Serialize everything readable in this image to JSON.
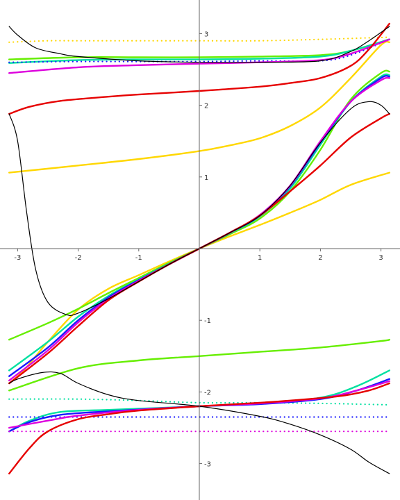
{
  "chart_data": {
    "type": "line",
    "title": "",
    "xlabel": "",
    "ylabel": "",
    "xlim": [
      -3.2,
      3.2
    ],
    "ylim": [
      -3.45,
      3.45
    ],
    "grid": false,
    "legend": "none",
    "x_ticks": [
      {
        "value": -3,
        "label": "-3"
      },
      {
        "value": -2,
        "label": "-2"
      },
      {
        "value": -1,
        "label": "-1"
      },
      {
        "value": 1,
        "label": "1"
      },
      {
        "value": 2,
        "label": "2"
      },
      {
        "value": 3,
        "label": "3"
      }
    ],
    "y_ticks": [
      {
        "value": -3,
        "label": "-3"
      },
      {
        "value": -2,
        "label": "-2"
      },
      {
        "value": -1,
        "label": "-1"
      },
      {
        "value": 1,
        "label": "1"
      },
      {
        "value": 2,
        "label": "2"
      },
      {
        "value": 3,
        "label": "3"
      }
    ],
    "series": [
      {
        "color": "#ffd700",
        "style": "solid",
        "points": [
          [
            -3.14,
            -1.88
          ],
          [
            -2.9,
            -1.7
          ],
          [
            -2.5,
            -1.3
          ],
          [
            -2,
            -0.85
          ],
          [
            -1.5,
            -0.56
          ],
          [
            -1,
            -0.37
          ],
          [
            -0.5,
            -0.18
          ],
          [
            0,
            0
          ],
          [
            0.5,
            0.17
          ],
          [
            1,
            0.33
          ],
          [
            1.5,
            0.5
          ],
          [
            2,
            0.68
          ],
          [
            2.5,
            0.89
          ],
          [
            3.14,
            1.06
          ]
        ]
      },
      {
        "color": "#ffd700",
        "style": "solid",
        "points": [
          [
            -3.14,
            1.06
          ],
          [
            -2,
            1.16
          ],
          [
            -1,
            1.25
          ],
          [
            0,
            1.36
          ],
          [
            0.5,
            1.44
          ],
          [
            1,
            1.54
          ],
          [
            1.5,
            1.71
          ],
          [
            2,
            1.97
          ],
          [
            2.5,
            2.38
          ],
          [
            3.0,
            2.84
          ],
          [
            3.14,
            2.88
          ]
        ]
      },
      {
        "color": "#ffd700",
        "style": "dotted",
        "points": [
          [
            -3.14,
            2.88
          ],
          [
            -2.5,
            2.9
          ],
          [
            -2,
            2.9
          ],
          [
            -1,
            2.9
          ],
          [
            0,
            2.9
          ],
          [
            1,
            2.9
          ],
          [
            2,
            2.92
          ],
          [
            3.14,
            2.95
          ]
        ]
      },
      {
        "color": "#66ee00",
        "style": "solid",
        "points": [
          [
            -3.14,
            -1.27
          ],
          [
            -2.5,
            -1.04
          ],
          [
            -2,
            -0.84
          ],
          [
            -1.5,
            -0.62
          ],
          [
            -1,
            -0.41
          ],
          [
            -0.5,
            -0.2
          ],
          [
            0,
            0
          ],
          [
            0.5,
            0.2
          ],
          [
            1,
            0.42
          ],
          [
            1.5,
            0.8
          ],
          [
            2,
            1.38
          ],
          [
            2.5,
            2.08
          ],
          [
            3.0,
            2.45
          ],
          [
            3.14,
            2.47
          ]
        ]
      },
      {
        "color": "#66ee00",
        "style": "solid",
        "points": [
          [
            -3.14,
            -1.98
          ],
          [
            -2,
            -1.67
          ],
          [
            -1,
            -1.56
          ],
          [
            0,
            -1.5
          ],
          [
            1,
            -1.44
          ],
          [
            2,
            -1.38
          ],
          [
            3,
            -1.29
          ],
          [
            3.14,
            -1.27
          ]
        ]
      },
      {
        "color": "#66ee00",
        "style": "solid",
        "points": [
          [
            -3.14,
            2.64
          ],
          [
            -2,
            2.67
          ],
          [
            -1,
            2.67
          ],
          [
            0,
            2.67
          ],
          [
            1,
            2.68
          ],
          [
            2,
            2.7
          ],
          [
            2.5,
            2.76
          ],
          [
            3.14,
            2.92
          ]
        ]
      },
      {
        "color": "#00e0a0",
        "style": "solid",
        "points": [
          [
            -3.14,
            -1.7
          ],
          [
            -2.5,
            -1.3
          ],
          [
            -2,
            -0.95
          ],
          [
            -1.5,
            -0.66
          ],
          [
            -1,
            -0.43
          ],
          [
            -0.5,
            -0.21
          ],
          [
            0,
            0
          ],
          [
            0.5,
            0.21
          ],
          [
            1,
            0.45
          ],
          [
            1.5,
            0.84
          ],
          [
            2,
            1.45
          ],
          [
            2.5,
            2.05
          ],
          [
            3.0,
            2.4
          ],
          [
            3.14,
            2.42
          ]
        ]
      },
      {
        "color": "#00e0a0",
        "style": "solid",
        "points": [
          [
            -3.14,
            2.59
          ],
          [
            -2,
            2.63
          ],
          [
            -1,
            2.64
          ],
          [
            0,
            2.64
          ],
          [
            1,
            2.65
          ],
          [
            2,
            2.68
          ],
          [
            2.5,
            2.76
          ],
          [
            3.14,
            2.92
          ]
        ]
      },
      {
        "color": "#00e0a0",
        "style": "solid",
        "points": [
          [
            -3.14,
            -2.55
          ],
          [
            -2.8,
            -2.4
          ],
          [
            -2.3,
            -2.28
          ],
          [
            -1.5,
            -2.25
          ],
          [
            0,
            -2.2
          ],
          [
            1,
            -2.16
          ],
          [
            2,
            -2.08
          ],
          [
            2.6,
            -1.92
          ],
          [
            3.14,
            -1.7
          ]
        ]
      },
      {
        "color": "#00e0a0",
        "style": "dotted",
        "points": [
          [
            -3.14,
            -2.1
          ],
          [
            -2,
            -2.1
          ],
          [
            -1,
            -2.12
          ],
          [
            0,
            -2.15
          ],
          [
            1,
            -2.15
          ],
          [
            2,
            -2.16
          ],
          [
            3.14,
            -2.18
          ]
        ]
      },
      {
        "color": "#1a1aff",
        "style": "solid",
        "points": [
          [
            -3.14,
            -1.78
          ],
          [
            -2.5,
            -1.38
          ],
          [
            -2,
            -1.0
          ],
          [
            -1.5,
            -0.68
          ],
          [
            -1,
            -0.44
          ],
          [
            -0.5,
            -0.22
          ],
          [
            0,
            0
          ],
          [
            0.5,
            0.22
          ],
          [
            1,
            0.46
          ],
          [
            1.5,
            0.87
          ],
          [
            2,
            1.48
          ],
          [
            2.5,
            2.05
          ],
          [
            3.0,
            2.38
          ],
          [
            3.14,
            2.4
          ]
        ]
      },
      {
        "color": "#1a1aff",
        "style": "solid",
        "points": [
          [
            -3.14,
            -2.55
          ],
          [
            -2.8,
            -2.42
          ],
          [
            -2.3,
            -2.32
          ],
          [
            -1.5,
            -2.27
          ],
          [
            0,
            -2.2
          ],
          [
            1,
            -2.17
          ],
          [
            2,
            -2.1
          ],
          [
            2.6,
            -1.98
          ],
          [
            3.14,
            -1.82
          ]
        ]
      },
      {
        "color": "#1a1aff",
        "style": "dotted",
        "points": [
          [
            -3.14,
            2.6
          ],
          [
            -2,
            2.61
          ],
          [
            -1,
            2.61
          ],
          [
            0,
            2.61
          ],
          [
            1,
            2.62
          ],
          [
            2,
            2.62
          ],
          [
            2.5,
            2.7
          ],
          [
            3.14,
            2.92
          ]
        ]
      },
      {
        "color": "#1a1aff",
        "style": "dotted",
        "points": [
          [
            -3.14,
            -2.35
          ],
          [
            -2,
            -2.35
          ],
          [
            -1,
            -2.35
          ],
          [
            0,
            -2.35
          ],
          [
            1,
            -2.35
          ],
          [
            2,
            -2.35
          ],
          [
            3.14,
            -2.35
          ]
        ]
      },
      {
        "color": "#dd00dd",
        "style": "solid",
        "points": [
          [
            -3.14,
            -1.84
          ],
          [
            -2.5,
            -1.42
          ],
          [
            -2,
            -1.03
          ],
          [
            -1.5,
            -0.7
          ],
          [
            -1,
            -0.45
          ],
          [
            -0.5,
            -0.22
          ],
          [
            0,
            0
          ],
          [
            0.5,
            0.22
          ],
          [
            1,
            0.47
          ],
          [
            1.5,
            0.88
          ],
          [
            2,
            1.5
          ],
          [
            2.5,
            2.05
          ],
          [
            3.0,
            2.35
          ],
          [
            3.14,
            2.38
          ]
        ]
      },
      {
        "color": "#dd00dd",
        "style": "solid",
        "points": [
          [
            -3.14,
            -2.5
          ],
          [
            -2.5,
            -2.4
          ],
          [
            -2,
            -2.33
          ],
          [
            -1,
            -2.25
          ],
          [
            0,
            -2.2
          ],
          [
            1,
            -2.16
          ],
          [
            2,
            -2.09
          ],
          [
            2.6,
            -1.98
          ],
          [
            3.14,
            -1.85
          ]
        ]
      },
      {
        "color": "#dd00dd",
        "style": "solid",
        "points": [
          [
            -3.14,
            2.45
          ],
          [
            -2,
            2.53
          ],
          [
            -1,
            2.56
          ],
          [
            0,
            2.58
          ],
          [
            1,
            2.6
          ],
          [
            2,
            2.63
          ],
          [
            2.5,
            2.72
          ],
          [
            3.14,
            2.92
          ]
        ]
      },
      {
        "color": "#dd00dd",
        "style": "dotted",
        "points": [
          [
            -3.14,
            -2.55
          ],
          [
            -2,
            -2.55
          ],
          [
            -1,
            -2.55
          ],
          [
            0,
            -2.55
          ],
          [
            1,
            -2.55
          ],
          [
            2,
            -2.55
          ],
          [
            3.14,
            -2.55
          ]
        ]
      },
      {
        "color": "#e60000",
        "style": "solid",
        "points": [
          [
            -3.14,
            -1.88
          ],
          [
            -2.5,
            -1.46
          ],
          [
            -2,
            -1.08
          ],
          [
            -1.5,
            -0.72
          ],
          [
            -1,
            -0.46
          ],
          [
            -0.5,
            -0.22
          ],
          [
            0,
            0
          ],
          [
            0.5,
            0.22
          ],
          [
            1,
            0.46
          ],
          [
            1.5,
            0.8
          ],
          [
            2,
            1.16
          ],
          [
            2.5,
            1.55
          ],
          [
            3.0,
            1.82
          ],
          [
            3.14,
            1.88
          ]
        ]
      },
      {
        "color": "#e60000",
        "style": "solid",
        "points": [
          [
            -3.14,
            1.88
          ],
          [
            -2.8,
            1.98
          ],
          [
            -2.3,
            2.06
          ],
          [
            -1.5,
            2.12
          ],
          [
            -1,
            2.15
          ],
          [
            0,
            2.2
          ],
          [
            1,
            2.26
          ],
          [
            1.5,
            2.31
          ],
          [
            2,
            2.38
          ],
          [
            2.5,
            2.55
          ],
          [
            2.8,
            2.78
          ],
          [
            3.14,
            3.14
          ]
        ]
      },
      {
        "color": "#e60000",
        "style": "solid",
        "points": [
          [
            -3.14,
            -3.14
          ],
          [
            -2.8,
            -2.78
          ],
          [
            -2.5,
            -2.55
          ],
          [
            -2,
            -2.38
          ],
          [
            -1.5,
            -2.31
          ],
          [
            -1,
            -2.26
          ],
          [
            0,
            -2.2
          ],
          [
            1,
            -2.15
          ],
          [
            1.5,
            -2.12
          ],
          [
            2.3,
            -2.06
          ],
          [
            2.8,
            -1.98
          ],
          [
            3.14,
            -1.88
          ]
        ]
      },
      {
        "color": "#000000",
        "style": "solid",
        "points": [
          [
            -3.14,
            3.1
          ],
          [
            -3.0,
            2.98
          ],
          [
            -2.7,
            2.8
          ],
          [
            -2.3,
            2.72
          ],
          [
            -2,
            2.68
          ],
          [
            -1,
            2.62
          ],
          [
            0,
            2.6
          ],
          [
            1,
            2.6
          ],
          [
            2,
            2.62
          ],
          [
            2.5,
            2.75
          ],
          [
            2.8,
            2.9
          ],
          [
            3.14,
            3.1
          ]
        ]
      },
      {
        "color": "#000000",
        "style": "solid",
        "points": [
          [
            -3.14,
            1.88
          ],
          [
            -3.0,
            1.5
          ],
          [
            -2.85,
            0.5
          ],
          [
            -2.7,
            -0.3
          ],
          [
            -2.5,
            -0.75
          ],
          [
            -2.2,
            -0.92
          ],
          [
            -2,
            -0.9
          ],
          [
            -1.5,
            -0.7
          ],
          [
            -1,
            -0.46
          ],
          [
            -0.5,
            -0.22
          ],
          [
            0,
            0
          ],
          [
            0.5,
            0.22
          ],
          [
            1,
            0.46
          ],
          [
            1.5,
            0.88
          ],
          [
            2,
            1.48
          ],
          [
            2.5,
            1.95
          ],
          [
            2.8,
            2.05
          ],
          [
            3.0,
            2.0
          ],
          [
            3.14,
            1.88
          ]
        ]
      },
      {
        "color": "#000000",
        "style": "solid",
        "points": [
          [
            -3.14,
            -1.88
          ],
          [
            -3.0,
            -1.82
          ],
          [
            -2.6,
            -1.73
          ],
          [
            -2.3,
            -1.74
          ],
          [
            -2.0,
            -1.88
          ],
          [
            -1.5,
            -2.04
          ],
          [
            -1,
            -2.12
          ],
          [
            0,
            -2.2
          ],
          [
            1,
            -2.34
          ],
          [
            1.5,
            -2.45
          ],
          [
            2,
            -2.6
          ],
          [
            2.5,
            -2.8
          ],
          [
            2.8,
            -2.98
          ],
          [
            3.14,
            -3.14
          ]
        ]
      }
    ]
  }
}
